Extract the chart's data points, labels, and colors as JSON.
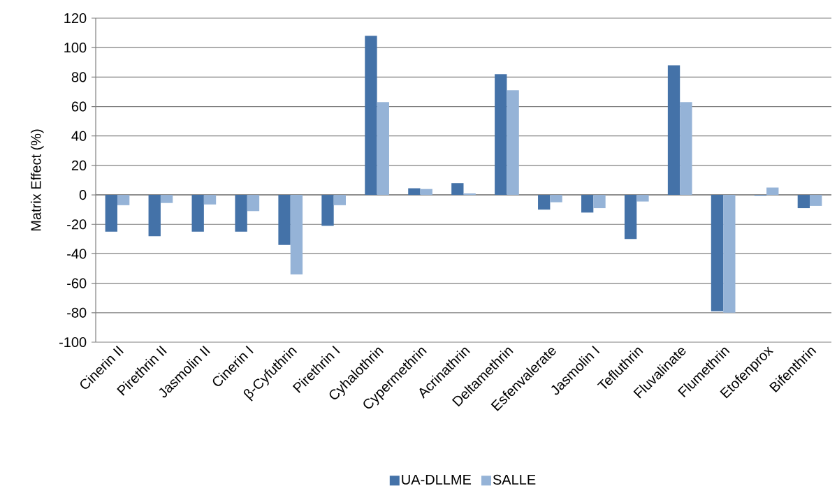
{
  "chart_data": {
    "type": "bar",
    "ylabel": "Matrix Effect (%)",
    "categories": [
      "Cinerin II",
      "Pirethrin II",
      "Jasmolin II",
      "Cinerin I",
      "β-Cyfuthrin",
      "Pirethrin I",
      "Cyhalothrin",
      "Cypermethrin",
      "Acrinathrin",
      "Deltamethrin",
      "Esfenvalerate",
      "Jasmolin I",
      "Tefluthrin",
      "Fluvalinate",
      "Flumethrin",
      "Etofenprox",
      "Bifenthrin"
    ],
    "series": [
      {
        "name": "UA-DLLME",
        "color": "#4472a8",
        "values": [
          -25,
          -28,
          -25,
          -25,
          -34,
          -21,
          108,
          4.5,
          8,
          82,
          -10,
          -12,
          -30,
          88,
          -79,
          -0.5,
          -9
        ]
      },
      {
        "name": "SALLE",
        "color": "#95b3d7",
        "values": [
          -7,
          -5.5,
          -6.5,
          -11,
          -54,
          -7,
          63,
          4,
          1,
          71,
          -5,
          -9,
          -4.5,
          63,
          -80,
          5,
          -7.5
        ]
      }
    ],
    "ylim": [
      -100,
      120
    ],
    "yticks": [
      -100,
      -80,
      -60,
      -40,
      -20,
      0,
      20,
      40,
      60,
      80,
      100,
      120
    ],
    "grid": "y",
    "legend": "bottom"
  }
}
